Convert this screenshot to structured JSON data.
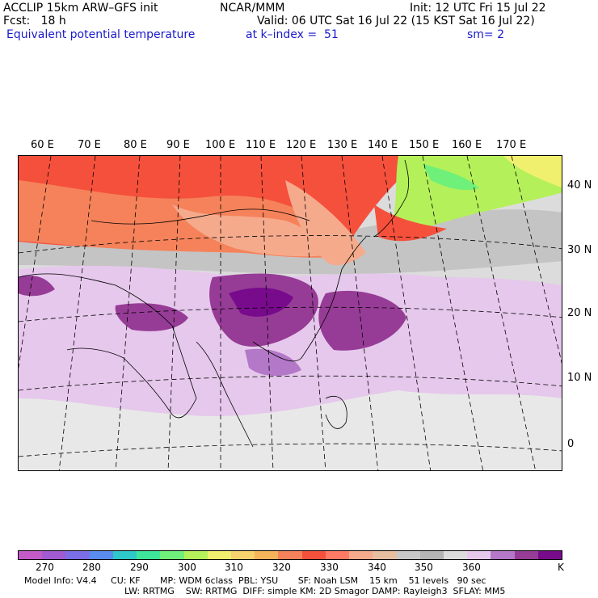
{
  "header": {
    "model": "ACCLIP 15km ARW–GFS init",
    "org": "NCAR/MMM",
    "init": "Init: 12 UTC Fri 15 Jul 22",
    "fcst": "Fcst:   18 h",
    "valid": "Valid: 06 UTC Sat 16 Jul 22 (15 KST Sat 16 Jul 22)",
    "field": "Equivalent potential temperature",
    "kindex": "at k–index =  51",
    "sm": "sm= 2"
  },
  "map": {
    "lon_labels": [
      "60 E",
      "70 E",
      "80 E",
      "90 E",
      "100 E",
      "110 E",
      "120 E",
      "130 E",
      "140 E",
      "150 E",
      "160 E",
      "170 E"
    ],
    "lat_labels": [
      "40 N",
      "30 N",
      "20 N",
      "10 N",
      "0"
    ]
  },
  "colorbar": {
    "colors": [
      "#c45ac8",
      "#a05ad2",
      "#7c6ee6",
      "#5a8cf0",
      "#2ec8c8",
      "#3ee69a",
      "#6ef07a",
      "#b4f05a",
      "#f0f06e",
      "#f5d26e",
      "#f5b45a",
      "#f5825a",
      "#f5503c",
      "#ff7a64",
      "#f5aa8c",
      "#e6bea0",
      "#c8c8c8",
      "#b4b4b4",
      "#dcdcdc",
      "#e6c8ec",
      "#b478c8",
      "#963c96",
      "#780a8c"
    ],
    "labels": [
      "270",
      "280",
      "290",
      "300",
      "310",
      "320",
      "330",
      "340",
      "350",
      "360",
      "K"
    ]
  },
  "footer": {
    "line1": "Model Info: V4.4     CU: KF       MP: WDM 6class  PBL: YSU       SF: Noah LSM    15 km    51 levels   90 sec",
    "line2": "LW: RRTMG    SW: RRTMG  DIFF: simple KM: 2D Smagor DAMP: Rayleigh3  SFLAY: MM5"
  }
}
